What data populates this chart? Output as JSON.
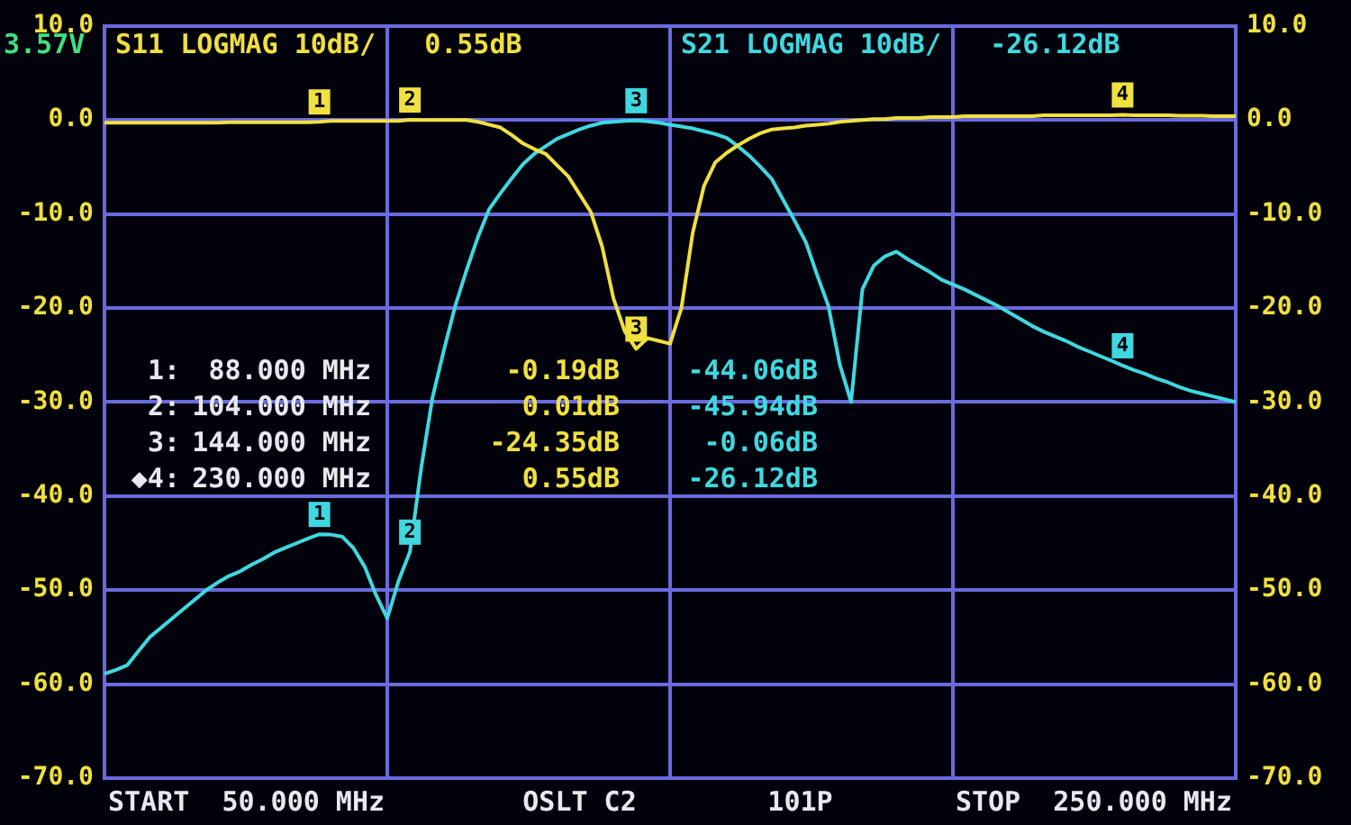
{
  "chart_data": {
    "type": "line",
    "categories": [
      null,
      null,
      null,
      null,
      null,
      null,
      null,
      null,
      null,
      null,
      null,
      null,
      null,
      null,
      null,
      null,
      null,
      null,
      null,
      null,
      null,
      null,
      null,
      null,
      null,
      null,
      null,
      null,
      null,
      null,
      null,
      null,
      null,
      null,
      null,
      null,
      null,
      null,
      null,
      null,
      null,
      null,
      null,
      null,
      null,
      null,
      null,
      null,
      null,
      null,
      null,
      null,
      null,
      null,
      null,
      null,
      null,
      null,
      null,
      null,
      null,
      null,
      null,
      null,
      null,
      null,
      null,
      null,
      null,
      null,
      null,
      null,
      null,
      null,
      null,
      null,
      null,
      null,
      null,
      null,
      null,
      null,
      null,
      null,
      null,
      null,
      null,
      null,
      null,
      null,
      null,
      null,
      null,
      null,
      null,
      null,
      null,
      null,
      null,
      null,
      null
    ],
    "ylim": [
      -70,
      10
    ],
    "yticks": [
      {
        "value": -70,
        "label": "-70.0"
      },
      {
        "value": -60,
        "label": "-60.0"
      },
      {
        "value": -50,
        "label": "-50.0"
      },
      {
        "value": -40,
        "label": "-40.0"
      },
      {
        "value": -30,
        "label": "-30.0"
      },
      {
        "value": -20,
        "label": "-20.0"
      },
      {
        "value": -10,
        "label": "-10.0"
      },
      {
        "value": 0,
        "label": "0.0"
      },
      {
        "value": 10,
        "label": "10.0"
      }
    ],
    "y2lim": [
      -70,
      10
    ],
    "y2ticks": [
      {
        "value": -70,
        "label": "-70.0"
      },
      {
        "value": -60,
        "label": "-60.0"
      },
      {
        "value": -50,
        "label": "-50.0"
      },
      {
        "value": -40,
        "label": "-40.0"
      },
      {
        "value": -30,
        "label": "-30.0"
      },
      {
        "value": -20,
        "label": "-20.0"
      },
      {
        "value": -10,
        "label": "-10.0"
      },
      {
        "value": 0,
        "label": "0.0"
      },
      {
        "value": 10,
        "label": "10.0"
      }
    ],
    "tick_labels": "y",
    "grid": true,
    "marker": "none",
    "line_style": "solid",
    "series": [
      {
        "name": "S11 LOGMAG 10dB/   0.55dB",
        "color": "#f0e040",
        "values": [
          -0.3,
          -0.3,
          -0.3,
          -0.3,
          -0.3,
          -0.3,
          -0.3,
          -0.3,
          -0.3,
          -0.3,
          -0.3,
          -0.25,
          -0.25,
          -0.25,
          -0.25,
          -0.25,
          -0.25,
          -0.25,
          -0.25,
          -0.19,
          -0.1,
          -0.1,
          -0.1,
          -0.1,
          -0.1,
          -0.1,
          -0.1,
          0.01,
          0,
          0,
          0,
          0,
          0,
          -0.2,
          -0.5,
          -0.8,
          -1.6,
          -2.5,
          -3.1,
          -3.6,
          -4.8,
          -6,
          -7.9,
          -9.8,
          -13.5,
          -19,
          -22.5,
          -24.35,
          -23.2,
          -23.5,
          -23.8,
          -20,
          -12,
          -7,
          -4.5,
          -3.5,
          -2.7,
          -2,
          -1.4,
          -1,
          -0.9,
          -0.8,
          -0.6,
          -0.5,
          -0.4,
          -0.2,
          -0.1,
          0,
          0.1,
          0.1,
          0.2,
          0.2,
          0.2,
          0.3,
          0.3,
          0.3,
          0.4,
          0.4,
          0.4,
          0.4,
          0.4,
          0.4,
          0.4,
          0.5,
          0.5,
          0.5,
          0.5,
          0.5,
          0.5,
          0.5,
          0.55,
          0.5,
          0.5,
          0.5,
          0.5,
          0.45,
          0.45,
          0.45,
          0.4,
          0.4,
          0.4
        ]
      },
      {
        "name": "S21 LOGMAG 10dB/   -26.12dB",
        "color": "#40d8e0",
        "values": [
          -58.9,
          -58.5,
          -58,
          -56.5,
          -55,
          -54,
          -53,
          -52,
          -51,
          -50,
          -49.2,
          -48.5,
          -48,
          -47.3,
          -46.7,
          -46,
          -45.5,
          -45,
          -44.5,
          -44.06,
          -44.1,
          -44.3,
          -45.5,
          -47.5,
          -50.5,
          -53,
          -49,
          -45.94,
          -37,
          -29.5,
          -24.5,
          -19.8,
          -16,
          -12.5,
          -9.5,
          -7.8,
          -6.2,
          -4.7,
          -3.6,
          -2.8,
          -2,
          -1.5,
          -1,
          -0.6,
          -0.3,
          -0.2,
          -0.1,
          -0.06,
          -0.15,
          -0.3,
          -0.5,
          -0.7,
          -0.9,
          -1.2,
          -1.5,
          -1.9,
          -2.8,
          -3.8,
          -5,
          -6.3,
          -8.5,
          -10.7,
          -13,
          -16.5,
          -19.8,
          -26,
          -30,
          -18,
          -15.5,
          -14.5,
          -14,
          -14.8,
          -15.5,
          -16.2,
          -17,
          -17.5,
          -18,
          -18.6,
          -19.2,
          -19.8,
          -20.5,
          -21.2,
          -21.9,
          -22.5,
          -23,
          -23.5,
          -24.1,
          -24.6,
          -25.1,
          -25.6,
          -26.12,
          -26.6,
          -27,
          -27.5,
          -27.9,
          -28.4,
          -28.8,
          -29.1,
          -29.4,
          -29.7,
          -30
        ]
      }
    ],
    "annotations": [
      "3.57V",
      "OSLT C2",
      "101P",
      "START  50.000 MHz",
      "STOP  250.000 MHz",
      "1:",
      "88.000 MHz",
      "-0.19dB",
      "-44.06dB",
      "2:",
      "104.000 MHz",
      "0.01dB",
      "-45.94dB",
      "3:",
      "144.000 MHz",
      "-24.35dB",
      "-0.06dB",
      "◆4:",
      "230.000 MHz",
      "0.55dB",
      "-26.12dB",
      {
        "text": "1",
        "y": -0.19
      },
      {
        "text": "2",
        "y": 0.01
      },
      {
        "text": "3",
        "y": -24.35
      },
      {
        "text": "4",
        "y": 0.55
      },
      {
        "text": "1",
        "y": -44.06
      },
      {
        "text": "2",
        "y": -45.94
      },
      {
        "text": "3",
        "y": -0.06
      },
      {
        "text": "4",
        "y": -26.12
      }
    ]
  }
}
